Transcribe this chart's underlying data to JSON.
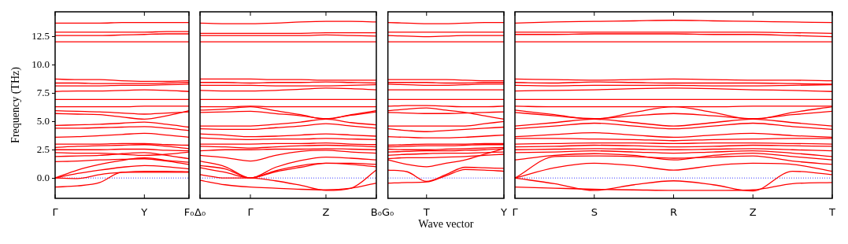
{
  "chart_data": [
    {
      "type": "line",
      "ylabel": "Frequency (THz)",
      "categories": [
        "Γ",
        null,
        null,
        null,
        "Y",
        null,
        "F₀"
      ],
      "ylim": [
        -1.8,
        14.7
      ],
      "yticks": [
        {
          "value": 0,
          "label": "0.0"
        },
        2.5,
        {
          "value": 5,
          "label": "5.0"
        },
        7.5,
        {
          "value": 10,
          "label": "10.0"
        },
        12.5
      ],
      "ref_lines": [
        {
          "axis": "y",
          "value": 0,
          "color": "#0000ff",
          "line_style": "dotted"
        }
      ],
      "series": [
        {
          "color": "#ff0000",
          "values": [
            13.7,
            13.7,
            13.7,
            13.75,
            13.75,
            13.75,
            13.75
          ]
        },
        {
          "color": "#ff0000",
          "values": [
            12.9,
            12.9,
            12.9,
            12.9,
            12.9,
            12.95,
            12.95
          ]
        },
        {
          "color": "#ff0000",
          "values": [
            12.6,
            12.6,
            12.6,
            12.65,
            12.7,
            12.75,
            12.75
          ]
        },
        {
          "color": "#ff0000",
          "values": [
            12.05,
            12.05,
            12.05,
            12.05,
            12.05,
            12.05,
            12.05
          ]
        },
        {
          "color": "#ff0000",
          "values": [
            8.75,
            8.7,
            8.7,
            8.6,
            8.55,
            8.55,
            8.6
          ]
        },
        {
          "color": "#ff0000",
          "values": [
            8.4,
            8.4,
            8.35,
            8.35,
            8.35,
            8.4,
            8.45
          ]
        },
        {
          "color": "#ff0000",
          "values": [
            8.15,
            8.15,
            8.15,
            8.2,
            8.2,
            8.25,
            8.3
          ]
        },
        {
          "color": "#ff0000",
          "values": [
            7.65,
            7.7,
            7.7,
            7.75,
            7.8,
            7.75,
            7.65
          ]
        },
        {
          "color": "#ff0000",
          "values": [
            6.95,
            6.95,
            6.95,
            6.95,
            6.95,
            6.95,
            6.95
          ]
        },
        {
          "color": "#ff0000",
          "values": [
            6.3,
            6.3,
            6.3,
            6.3,
            6.35,
            6.35,
            6.35
          ]
        },
        {
          "color": "#ff0000",
          "values": [
            5.7,
            5.65,
            5.6,
            5.4,
            5.2,
            5.5,
            5.95
          ]
        },
        {
          "color": "#ff0000",
          "values": [
            5.95,
            5.9,
            5.85,
            5.75,
            5.65,
            5.75,
            5.85
          ]
        },
        {
          "color": "#ff0000",
          "values": [
            4.65,
            4.7,
            4.75,
            4.85,
            4.95,
            4.75,
            4.5
          ]
        },
        {
          "color": "#ff0000",
          "values": [
            4.4,
            4.4,
            4.45,
            4.5,
            4.55,
            4.4,
            4.2
          ]
        },
        {
          "color": "#ff0000",
          "values": [
            3.6,
            3.65,
            3.75,
            3.85,
            3.95,
            3.8,
            3.6
          ]
        },
        {
          "color": "#ff0000",
          "values": [
            3.0,
            3.0,
            3.0,
            3.05,
            3.05,
            2.95,
            2.9
          ]
        },
        {
          "color": "#ff0000",
          "values": [
            2.7,
            2.8,
            2.85,
            2.9,
            2.95,
            2.8,
            2.6
          ]
        },
        {
          "color": "#ff0000",
          "values": [
            2.5,
            2.5,
            2.5,
            2.55,
            2.55,
            2.45,
            2.4
          ]
        },
        {
          "color": "#ff0000",
          "values": [
            2.25,
            2.2,
            2.2,
            2.1,
            2.0,
            2.1,
            2.3
          ]
        },
        {
          "color": "#ff0000",
          "values": [
            1.9,
            1.95,
            2.0,
            2.15,
            2.25,
            2.0,
            1.7
          ]
        },
        {
          "color": "#ff0000",
          "values": [
            1.45,
            1.5,
            1.6,
            1.65,
            1.7,
            1.5,
            1.2
          ]
        },
        {
          "color": "#ff0000",
          "values": [
            0,
            0.7,
            1.2,
            1.55,
            1.8,
            1.55,
            1.4
          ]
        },
        {
          "color": "#ff0000",
          "values": [
            0,
            0.4,
            0.7,
            0.95,
            1.1,
            1.0,
            0.8
          ]
        },
        {
          "color": "#ff0000",
          "values": [
            0,
            -0.05,
            0.3,
            0.5,
            0.6,
            0.6,
            0.55
          ]
        },
        {
          "color": "#ff0000",
          "values": [
            -0.8,
            -0.7,
            -0.4,
            0.5,
            0.5,
            0.5,
            0.5
          ]
        }
      ]
    },
    {
      "type": "line",
      "tick_labels": "x",
      "categories": [
        "Δ₀",
        null,
        "Γ",
        null,
        null,
        "Z",
        null,
        "B₀"
      ],
      "ylim": [
        -1.8,
        14.7
      ],
      "yticks": [
        0,
        2.5,
        5,
        7.5,
        10,
        12.5
      ],
      "ref_lines": [
        {
          "axis": "y",
          "value": 0,
          "color": "#0000ff",
          "line_style": "dotted"
        }
      ],
      "series": [
        {
          "color": "#ff0000",
          "values": [
            13.7,
            13.65,
            13.65,
            13.7,
            13.8,
            13.85,
            13.85,
            13.8
          ]
        },
        {
          "color": "#ff0000",
          "values": [
            12.8,
            12.8,
            12.8,
            12.8,
            12.8,
            12.85,
            12.85,
            12.85
          ]
        },
        {
          "color": "#ff0000",
          "values": [
            12.6,
            12.6,
            12.6,
            12.6,
            12.6,
            12.65,
            12.6,
            12.55
          ]
        },
        {
          "color": "#ff0000",
          "values": [
            12.05,
            12.05,
            12.05,
            12.05,
            12.05,
            12.05,
            12.05,
            12.05
          ]
        },
        {
          "color": "#ff0000",
          "values": [
            8.75,
            8.75,
            8.75,
            8.7,
            8.7,
            8.65,
            8.65,
            8.65
          ]
        },
        {
          "color": "#ff0000",
          "values": [
            8.45,
            8.45,
            8.4,
            8.45,
            8.45,
            8.5,
            8.45,
            8.4
          ]
        },
        {
          "color": "#ff0000",
          "values": [
            8.2,
            8.2,
            8.2,
            8.15,
            8.15,
            8.15,
            8.2,
            8.25
          ]
        },
        {
          "color": "#ff0000",
          "values": [
            7.75,
            7.7,
            7.7,
            7.75,
            7.85,
            7.95,
            7.9,
            7.8
          ]
        },
        {
          "color": "#ff0000",
          "values": [
            6.95,
            6.95,
            6.95,
            6.95,
            6.95,
            6.95,
            6.95,
            6.95
          ]
        },
        {
          "color": "#ff0000",
          "values": [
            6.3,
            6.3,
            6.35,
            6.3,
            6.3,
            6.3,
            6.3,
            6.3
          ]
        },
        {
          "color": "#ff0000",
          "values": [
            6.0,
            6.1,
            6.3,
            5.95,
            5.6,
            5.2,
            5.6,
            5.95
          ]
        },
        {
          "color": "#ff0000",
          "values": [
            5.8,
            5.85,
            5.9,
            5.7,
            5.5,
            5.25,
            5.55,
            5.85
          ]
        },
        {
          "color": "#ff0000",
          "values": [
            4.6,
            4.6,
            4.6,
            4.75,
            4.95,
            5.2,
            4.9,
            4.7
          ]
        },
        {
          "color": "#ff0000",
          "values": [
            4.35,
            4.3,
            4.3,
            4.45,
            4.6,
            4.8,
            4.6,
            4.4
          ]
        },
        {
          "color": "#ff0000",
          "values": [
            3.9,
            3.8,
            3.65,
            3.7,
            3.8,
            3.9,
            3.8,
            3.7
          ]
        },
        {
          "color": "#ff0000",
          "values": [
            3.55,
            3.45,
            3.4,
            3.45,
            3.45,
            3.5,
            3.45,
            3.4
          ]
        },
        {
          "color": "#ff0000",
          "values": [
            3.0,
            3.0,
            3.0,
            3.05,
            3.05,
            3.1,
            3.0,
            2.95
          ]
        },
        {
          "color": "#ff0000",
          "values": [
            2.8,
            2.75,
            2.65,
            2.75,
            2.85,
            2.9,
            2.85,
            2.75
          ]
        },
        {
          "color": "#ff0000",
          "values": [
            2.4,
            2.5,
            2.5,
            2.55,
            2.55,
            2.6,
            2.55,
            2.5
          ]
        },
        {
          "color": "#ff0000",
          "values": [
            2.0,
            1.8,
            1.5,
            2.0,
            2.35,
            2.45,
            2.3,
            2.2
          ]
        },
        {
          "color": "#ff0000",
          "values": [
            1.5,
            1.0,
            0,
            0.95,
            1.55,
            1.85,
            1.75,
            1.6
          ]
        },
        {
          "color": "#ff0000",
          "values": [
            1.1,
            0.8,
            0,
            0.65,
            1.1,
            1.3,
            1.3,
            1.2
          ]
        },
        {
          "color": "#ff0000",
          "values": [
            0.9,
            0.5,
            0,
            0.55,
            0.95,
            1.3,
            1.2,
            1.0
          ]
        },
        {
          "color": "#ff0000",
          "values": [
            0.3,
            0,
            0,
            -0.25,
            -0.65,
            -1.1,
            -0.9,
            0.7
          ]
        },
        {
          "color": "#ff0000",
          "values": [
            -0.2,
            -0.6,
            -0.8,
            -0.9,
            -1.0,
            -1.05,
            -0.9,
            -0.45
          ]
        }
      ]
    },
    {
      "type": "line",
      "tick_labels": "x",
      "xlabel": "Wave vector",
      "categories": [
        "G₀",
        null,
        "T",
        null,
        null,
        null,
        "Y"
      ],
      "ylim": [
        -1.8,
        14.7
      ],
      "yticks": [
        0,
        2.5,
        5,
        7.5,
        10,
        12.5
      ],
      "ref_lines": [
        {
          "axis": "y",
          "value": 0,
          "color": "#0000ff",
          "line_style": "dotted"
        }
      ],
      "series": [
        {
          "color": "#ff0000",
          "values": [
            13.75,
            13.7,
            13.65,
            13.65,
            13.7,
            13.75,
            13.75
          ]
        },
        {
          "color": "#ff0000",
          "values": [
            12.9,
            12.9,
            12.9,
            12.9,
            12.9,
            12.9,
            12.9
          ]
        },
        {
          "color": "#ff0000",
          "values": [
            12.6,
            12.55,
            12.5,
            12.55,
            12.6,
            12.6,
            12.6
          ]
        },
        {
          "color": "#ff0000",
          "values": [
            12.05,
            12.05,
            12.05,
            12.05,
            12.05,
            12.05,
            12.05
          ]
        },
        {
          "color": "#ff0000",
          "values": [
            8.7,
            8.7,
            8.7,
            8.7,
            8.65,
            8.6,
            8.6
          ]
        },
        {
          "color": "#ff0000",
          "values": [
            8.45,
            8.45,
            8.45,
            8.4,
            8.4,
            8.45,
            8.45
          ]
        },
        {
          "color": "#ff0000",
          "values": [
            8.3,
            8.25,
            8.2,
            8.2,
            8.25,
            8.3,
            8.3
          ]
        },
        {
          "color": "#ff0000",
          "values": [
            7.8,
            7.8,
            7.8,
            7.8,
            7.8,
            7.8,
            7.8
          ]
        },
        {
          "color": "#ff0000",
          "values": [
            6.95,
            6.95,
            6.95,
            6.95,
            6.95,
            6.95,
            6.95
          ]
        },
        {
          "color": "#ff0000",
          "values": [
            6.35,
            6.4,
            6.4,
            6.35,
            6.3,
            6.3,
            6.35
          ]
        },
        {
          "color": "#ff0000",
          "values": [
            5.95,
            6.1,
            6.2,
            6.0,
            5.8,
            5.5,
            5.2
          ]
        },
        {
          "color": "#ff0000",
          "values": [
            5.8,
            5.75,
            5.7,
            5.7,
            5.75,
            5.8,
            5.85
          ]
        },
        {
          "color": "#ff0000",
          "values": [
            4.6,
            4.6,
            4.6,
            4.6,
            4.6,
            4.8,
            5.0
          ]
        },
        {
          "color": "#ff0000",
          "values": [
            4.35,
            4.2,
            4.1,
            4.2,
            4.3,
            4.4,
            4.5
          ]
        },
        {
          "color": "#ff0000",
          "values": [
            3.65,
            3.6,
            3.55,
            3.55,
            3.6,
            3.7,
            3.8
          ]
        },
        {
          "color": "#ff0000",
          "values": [
            2.9,
            2.95,
            3.0,
            3.0,
            3.0,
            3.05,
            3.05
          ]
        },
        {
          "color": "#ff0000",
          "values": [
            2.75,
            2.8,
            2.85,
            2.85,
            2.9,
            2.95,
            2.95
          ]
        },
        {
          "color": "#ff0000",
          "values": [
            2.55,
            2.5,
            2.5,
            2.55,
            2.6,
            2.65,
            2.7
          ]
        },
        {
          "color": "#ff0000",
          "values": [
            2.3,
            2.35,
            2.4,
            2.4,
            2.45,
            2.5,
            2.6
          ]
        },
        {
          "color": "#ff0000",
          "values": [
            2.0,
            2.1,
            2.15,
            2.2,
            2.2,
            2.25,
            2.3
          ]
        },
        {
          "color": "#ff0000",
          "values": [
            1.7,
            1.8,
            1.8,
            1.85,
            1.9,
            2.0,
            2.1
          ]
        },
        {
          "color": "#ff0000",
          "values": [
            1.6,
            1.2,
            1.0,
            1.3,
            1.6,
            2.1,
            2.6
          ]
        },
        {
          "color": "#ff0000",
          "values": [
            0.7,
            0.55,
            -0.3,
            0.3,
            0.95,
            0.9,
            0.85
          ]
        },
        {
          "color": "#ff0000",
          "values": [
            -0.45,
            -0.4,
            -0.35,
            0.2,
            0.75,
            0.7,
            0.6
          ]
        }
      ]
    },
    {
      "type": "line",
      "tick_labels": "x",
      "categories": [
        "Γ",
        null,
        "S",
        null,
        "R",
        null,
        "Z",
        null,
        "T"
      ],
      "ylim": [
        -1.8,
        14.7
      ],
      "yticks": [
        0,
        2.5,
        5,
        7.5,
        10,
        12.5
      ],
      "ref_lines": [
        {
          "axis": "y",
          "value": 0,
          "color": "#0000ff",
          "line_style": "dotted"
        }
      ],
      "series": [
        {
          "color": "#ff0000",
          "values": [
            13.7,
            13.8,
            13.85,
            13.9,
            13.95,
            13.9,
            13.85,
            13.8,
            13.75
          ]
        },
        {
          "color": "#ff0000",
          "values": [
            12.9,
            12.9,
            12.9,
            12.9,
            12.9,
            12.9,
            12.9,
            12.85,
            12.8
          ]
        },
        {
          "color": "#ff0000",
          "values": [
            12.7,
            12.7,
            12.75,
            12.75,
            12.75,
            12.7,
            12.7,
            12.6,
            12.5
          ]
        },
        {
          "color": "#ff0000",
          "values": [
            12.05,
            12.05,
            12.05,
            12.05,
            12.05,
            12.05,
            12.05,
            12.05,
            12.05
          ]
        },
        {
          "color": "#ff0000",
          "values": [
            8.75,
            8.7,
            8.65,
            8.7,
            8.75,
            8.7,
            8.65,
            8.65,
            8.6
          ]
        },
        {
          "color": "#ff0000",
          "values": [
            8.45,
            8.4,
            8.5,
            8.45,
            8.4,
            8.4,
            8.4,
            8.35,
            8.3
          ]
        },
        {
          "color": "#ff0000",
          "values": [
            8.2,
            8.15,
            8.2,
            8.2,
            8.2,
            8.15,
            8.15,
            8.2,
            8.25
          ]
        },
        {
          "color": "#ff0000",
          "values": [
            7.7,
            7.75,
            7.8,
            7.9,
            7.95,
            7.9,
            7.8,
            7.75,
            7.65
          ]
        },
        {
          "color": "#ff0000",
          "values": [
            6.95,
            6.95,
            6.95,
            6.95,
            6.95,
            6.95,
            6.95,
            6.95,
            6.95
          ]
        },
        {
          "color": "#ff0000",
          "values": [
            6.35,
            6.3,
            6.3,
            6.3,
            6.3,
            6.3,
            6.35,
            6.35,
            6.35
          ]
        },
        {
          "color": "#ff0000",
          "values": [
            6.0,
            5.6,
            5.2,
            5.8,
            6.3,
            5.8,
            5.2,
            5.8,
            6.3
          ]
        },
        {
          "color": "#ff0000",
          "values": [
            5.8,
            5.5,
            5.25,
            5.5,
            5.7,
            5.5,
            5.25,
            5.6,
            5.9
          ]
        },
        {
          "color": "#ff0000",
          "values": [
            4.6,
            4.9,
            5.2,
            4.9,
            4.6,
            4.9,
            5.2,
            4.9,
            4.6
          ]
        },
        {
          "color": "#ff0000",
          "values": [
            4.35,
            4.6,
            4.85,
            4.6,
            4.35,
            4.6,
            4.85,
            4.55,
            4.3
          ]
        },
        {
          "color": "#ff0000",
          "values": [
            3.65,
            3.85,
            4.0,
            3.8,
            3.6,
            3.8,
            3.95,
            3.75,
            3.6
          ]
        },
        {
          "color": "#ff0000",
          "values": [
            3.5,
            3.5,
            3.45,
            3.4,
            3.3,
            3.4,
            3.45,
            3.5,
            3.5
          ]
        },
        {
          "color": "#ff0000",
          "values": [
            3.0,
            3.05,
            3.1,
            3.1,
            3.05,
            3.1,
            3.1,
            3.05,
            3.0
          ]
        },
        {
          "color": "#ff0000",
          "values": [
            2.75,
            2.8,
            2.9,
            2.85,
            2.75,
            2.8,
            2.9,
            2.85,
            2.8
          ]
        },
        {
          "color": "#ff0000",
          "values": [
            2.5,
            2.55,
            2.6,
            2.55,
            2.5,
            2.55,
            2.6,
            2.5,
            2.4
          ]
        },
        {
          "color": "#ff0000",
          "values": [
            2.25,
            2.3,
            2.4,
            2.3,
            2.2,
            2.3,
            2.4,
            2.2,
            1.9
          ]
        },
        {
          "color": "#ff0000",
          "values": [
            1.6,
            2.0,
            2.15,
            2.0,
            1.6,
            2.0,
            2.2,
            1.9,
            1.6
          ]
        },
        {
          "color": "#ff0000",
          "values": [
            0,
            1.9,
            1.95,
            1.9,
            1.75,
            1.85,
            1.95,
            1.5,
            1.2
          ]
        },
        {
          "color": "#ff0000",
          "values": [
            0,
            0.9,
            1.3,
            1.1,
            0.7,
            1.1,
            1.3,
            1.2,
            0.6
          ]
        },
        {
          "color": "#ff0000",
          "values": [
            0,
            -0.5,
            -1.1,
            -0.6,
            -0.25,
            -0.6,
            -1.15,
            0.6,
            0.3
          ]
        },
        {
          "color": "#ff0000",
          "values": [
            -0.8,
            -0.9,
            -1.0,
            -1.05,
            -1.1,
            -1.1,
            -1.05,
            -0.5,
            -0.4
          ]
        }
      ]
    }
  ]
}
